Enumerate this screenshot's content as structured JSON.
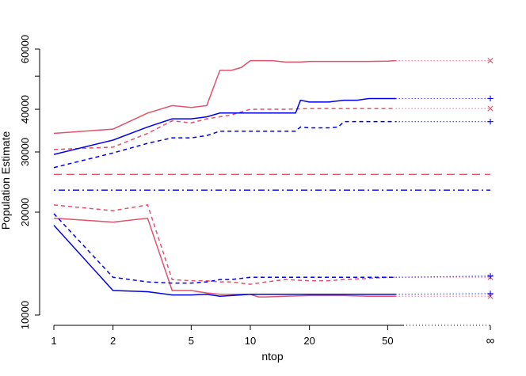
{
  "chart_data": {
    "type": "line",
    "xlabel": "ntop",
    "ylabel": "Population Estimate",
    "x_scale": "log",
    "y_scale": "log",
    "xlim": [
      1,
      60
    ],
    "ylim": [
      10000,
      60000
    ],
    "x_ticks": [
      1,
      2,
      5,
      10,
      20,
      50
    ],
    "x_tick_labels": [
      "1",
      "2",
      "5",
      "10",
      "20",
      "50"
    ],
    "x_infinity_label": "∞",
    "y_ticks": [
      10000,
      20000,
      30000,
      40000,
      60000
    ],
    "y_tick_labels": [
      "10000",
      "20000",
      "30000",
      "40000",
      "60000"
    ],
    "y_minor_ticks": [
      50000
    ],
    "grid": false,
    "legend": "none",
    "series": [
      {
        "color": "#DF536B",
        "dash": "solid",
        "x": [
          1,
          2,
          3,
          4,
          5,
          6,
          7,
          8,
          9,
          10,
          13,
          15,
          18,
          20,
          25,
          30,
          40,
          50,
          55
        ],
        "y": [
          34000,
          35000,
          39000,
          41000,
          40500,
          41000,
          52000,
          52000,
          53000,
          55500,
          55500,
          55000,
          55000,
          55200,
          55200,
          55200,
          55200,
          55300,
          55500
        ],
        "infinity_value": 55500,
        "infinity_marker": "x"
      },
      {
        "color": "#DF536B",
        "dash": "dashed",
        "x": [
          1,
          2,
          3,
          4,
          5,
          6,
          8,
          10,
          15,
          20,
          30,
          40,
          50,
          55
        ],
        "y": [
          30500,
          31000,
          34000,
          37000,
          36500,
          37500,
          38500,
          40000,
          40000,
          40200,
          40200,
          40200,
          40200,
          40200
        ],
        "infinity_value": 40200,
        "infinity_marker": "x"
      },
      {
        "color": "#0000EE",
        "dash": "solid",
        "x": [
          1,
          2,
          3,
          4,
          5,
          6,
          7,
          8,
          10,
          12,
          15,
          17,
          18,
          20,
          25,
          30,
          35,
          40,
          50,
          55
        ],
        "y": [
          29500,
          32500,
          35500,
          37500,
          37500,
          38000,
          39000,
          39000,
          39000,
          39000,
          39000,
          39000,
          42500,
          42000,
          42000,
          42500,
          42500,
          43000,
          43000,
          43000
        ],
        "infinity_value": 43000,
        "infinity_marker": "+"
      },
      {
        "color": "#0000EE",
        "dash": "dashed",
        "x": [
          1,
          2,
          3,
          4,
          5,
          6,
          7,
          8,
          10,
          12,
          15,
          17,
          18,
          20,
          25,
          28,
          30,
          40,
          50,
          55
        ],
        "y": [
          27000,
          29800,
          31800,
          33000,
          33000,
          33500,
          34500,
          34500,
          34500,
          34500,
          34500,
          34500,
          35500,
          35300,
          35300,
          35500,
          36800,
          36800,
          36800,
          36800
        ],
        "infinity_value": 36800,
        "infinity_marker": "+"
      },
      {
        "color": "#DF536B",
        "dash": "longdash",
        "reference": true,
        "y_constant": 25800
      },
      {
        "color": "#0000EE",
        "dash": "dotdash",
        "reference": true,
        "y_constant": 23200
      },
      {
        "color": "#DF536B",
        "dash": "dashed",
        "x": [
          1,
          2,
          3,
          4,
          5,
          6,
          7,
          8,
          10,
          12,
          15,
          20,
          25,
          30,
          40,
          50,
          55
        ],
        "y": [
          21000,
          20200,
          21000,
          12700,
          12600,
          12600,
          12500,
          12500,
          12300,
          12500,
          12700,
          12600,
          12600,
          12700,
          12800,
          12900,
          12900
        ],
        "infinity_value": 12900,
        "infinity_marker": "x"
      },
      {
        "color": "#DF536B",
        "dash": "solid",
        "x": [
          1,
          2,
          3,
          4,
          5,
          6,
          7,
          8,
          10,
          11,
          12,
          15,
          20,
          25,
          30,
          40,
          50,
          55
        ],
        "y": [
          19200,
          18700,
          19200,
          11800,
          11800,
          11600,
          11500,
          11500,
          11500,
          11300,
          11300,
          11350,
          11400,
          11400,
          11400,
          11350,
          11350,
          11350
        ],
        "infinity_value": 11350,
        "infinity_marker": "x"
      },
      {
        "color": "#0000EE",
        "dash": "dashed",
        "x": [
          1,
          2,
          3,
          4,
          5,
          6,
          7,
          8,
          10,
          12,
          15,
          20,
          25,
          30,
          40,
          50,
          55
        ],
        "y": [
          19800,
          12900,
          12500,
          12400,
          12400,
          12500,
          12700,
          12700,
          12900,
          12900,
          12900,
          12900,
          12900,
          12900,
          12900,
          12900,
          12900
        ],
        "infinity_value": 13000,
        "infinity_marker": "+"
      },
      {
        "color": "#0000EE",
        "dash": "solid",
        "x": [
          1,
          2,
          3,
          4,
          5,
          6,
          7,
          8,
          10,
          12,
          15,
          20,
          25,
          30,
          40,
          50,
          55
        ],
        "y": [
          18300,
          11800,
          11700,
          11450,
          11450,
          11500,
          11350,
          11400,
          11500,
          11500,
          11500,
          11500,
          11500,
          11500,
          11500,
          11500,
          11500
        ],
        "infinity_value": 11550,
        "infinity_marker": "+"
      }
    ]
  }
}
